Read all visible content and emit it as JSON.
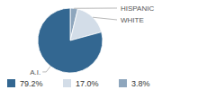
{
  "chart_data": {
    "type": "pie",
    "categories": [
      "A.I.",
      "WHITE",
      "HISPANIC"
    ],
    "values": [
      79.2,
      17.0,
      3.8
    ],
    "value_labels": [
      "79.2%",
      "17.0%",
      "3.8%"
    ],
    "colors": [
      "#336791",
      "#d3dde8",
      "#8ea6bd"
    ],
    "legend": "bottom"
  }
}
